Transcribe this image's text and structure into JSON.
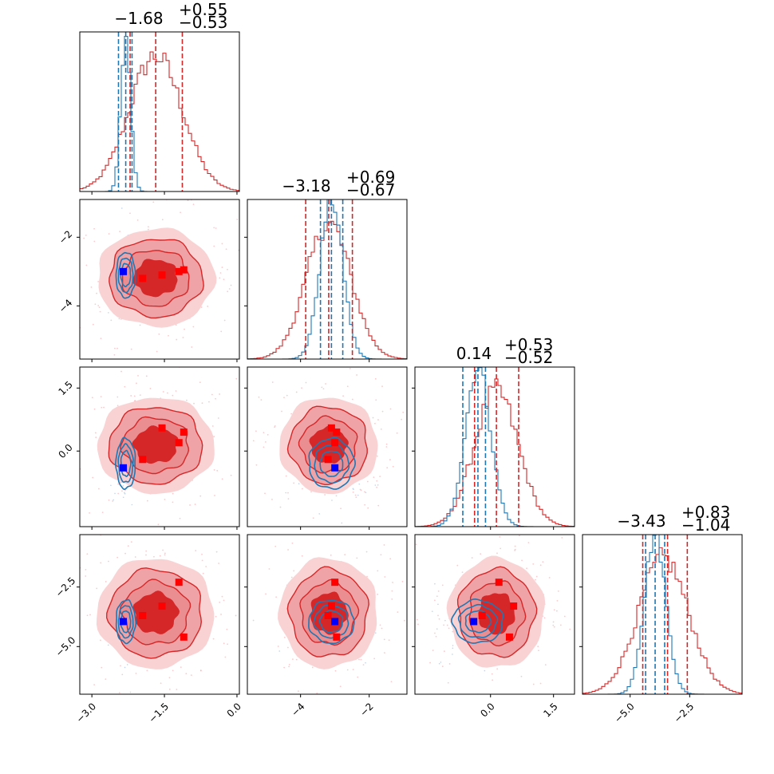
{
  "chart_data": {
    "type": "scatter",
    "kind": "corner-plot",
    "colors": {
      "posterior_a": "#d62728",
      "posterior_b": "#1f77b4",
      "truth_a": "#ff0000",
      "truth_b": "#0000ff"
    },
    "titles": [
      {
        "value": "−1.68",
        "plus": "+0.55",
        "minus": "−0.53"
      },
      {
        "value": "−3.18",
        "plus": "+0.69",
        "minus": "−0.67"
      },
      {
        "value": "0.14",
        "plus": "+0.53",
        "minus": "−0.52"
      },
      {
        "value": "−3.43",
        "plus": "+0.83",
        "minus": "−1.04"
      }
    ],
    "params": [
      {
        "range": [
          -3.25,
          0.05
        ],
        "ticks": [
          -3.0,
          -1.5,
          0.0
        ],
        "tick_labels": [
          "−3.0",
          "−1.5",
          "0.0"
        ]
      },
      {
        "range": [
          -5.55,
          -0.9
        ],
        "ticks": [
          -4,
          -2
        ],
        "tick_labels": [
          "−4",
          "−2"
        ]
      },
      {
        "range": [
          -1.8,
          2.0
        ],
        "ticks": [
          0.0,
          1.5
        ],
        "tick_labels": [
          "0.0",
          "1.5"
        ]
      },
      {
        "range": [
          -7.0,
          -0.3
        ],
        "ticks": [
          -5.0,
          -2.5
        ],
        "tick_labels": [
          "−5.0",
          "−2.5"
        ]
      }
    ],
    "posterior_a": {
      "mean": [
        -1.68,
        -3.18,
        0.14,
        -3.6
      ],
      "std": [
        0.55,
        0.65,
        0.52,
        1.05
      ],
      "quantiles": [
        [
          -2.21,
          -1.68,
          -1.13
        ],
        [
          -3.85,
          -3.18,
          -2.49
        ],
        [
          -0.38,
          0.14,
          0.67
        ],
        [
          -4.47,
          -3.43,
          -2.6
        ]
      ]
    },
    "posterior_b": {
      "mean": [
        -2.3,
        -3.1,
        -0.3,
        -3.95
      ],
      "std": [
        0.1,
        0.33,
        0.3,
        0.45
      ],
      "quantiles": [
        [
          -2.45,
          -2.3,
          -2.17
        ],
        [
          -3.42,
          -3.1,
          -2.77
        ],
        [
          -0.66,
          -0.3,
          -0.12
        ],
        [
          -4.35,
          -3.95,
          -3.55
        ]
      ]
    },
    "truth_points_a": [
      [
        -1.95,
        -3.2,
        -0.2,
        -3.7
      ],
      [
        -1.55,
        -3.1,
        0.55,
        -3.3
      ],
      [
        -1.2,
        -3.0,
        0.2,
        -2.3
      ],
      [
        -1.1,
        -2.95,
        0.45,
        -4.6
      ]
    ],
    "truth_point_b": [
      -2.35,
      -3.0,
      -0.4,
      -3.95
    ]
  }
}
